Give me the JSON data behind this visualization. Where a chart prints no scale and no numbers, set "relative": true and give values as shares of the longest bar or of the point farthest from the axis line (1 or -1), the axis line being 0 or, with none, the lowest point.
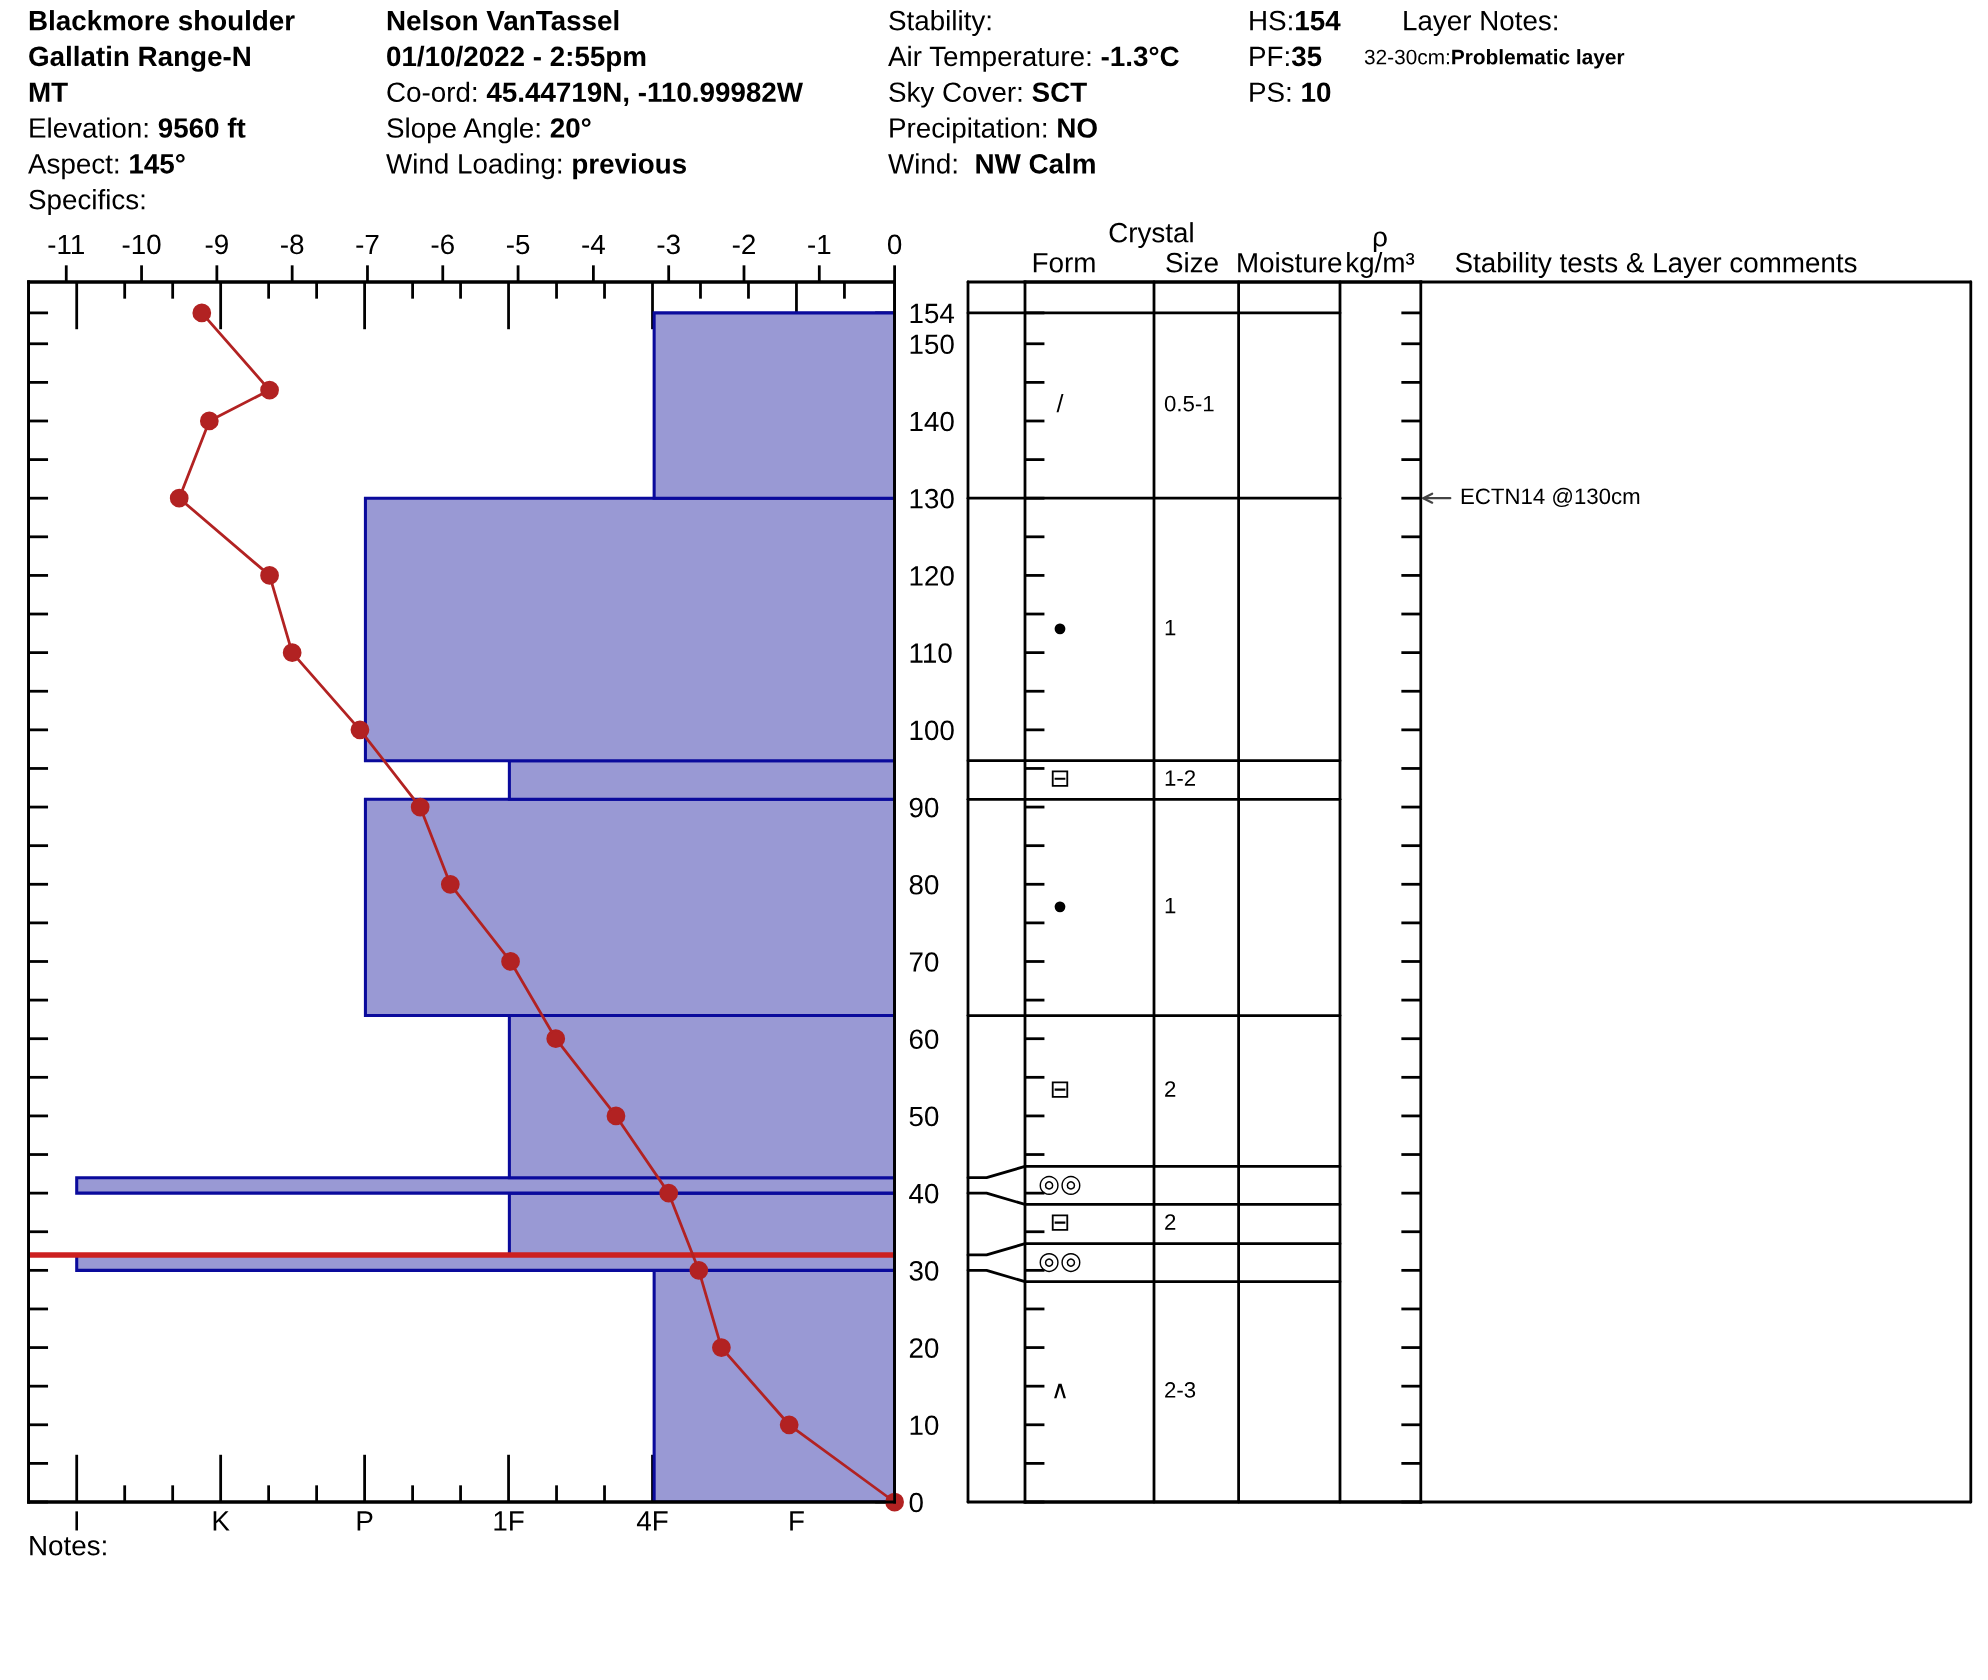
{
  "chart_data": [
    {
      "type": "other",
      "annotations": [
        "Blackmore shoulder",
        "Gallatin Range-N",
        "MT",
        "Elevation: 9560 ft",
        "Aspect: 145°",
        "Specifics:",
        "Nelson VanTassel",
        "01/10/2022 - 2:55pm",
        "Co-ord: 45.44719N, -110.99982W",
        "Slope Angle: 20°",
        "Wind Loading: previous",
        "Stability:",
        "Air Temperature: -1.3°C",
        "Sky Cover: SCT",
        "Precipitation: NO",
        "Wind:  NW Calm",
        "HS:154",
        "PF:35",
        "PS: 10",
        "Layer Notes:",
        "32-30cm:Problematic layer",
        "Notes:"
      ]
    },
    {
      "type": "bar",
      "orientation": "horizontal",
      "relative": true,
      "ylim": [
        0,
        158
      ],
      "yticks": [
        0,
        {
          "value": 5,
          "label": null
        },
        10,
        {
          "value": 15,
          "label": null
        },
        20,
        {
          "value": 25,
          "label": null
        },
        30,
        {
          "value": 35,
          "label": null
        },
        40,
        {
          "value": 45,
          "label": null
        },
        50,
        {
          "value": 55,
          "label": null
        },
        60,
        {
          "value": 65,
          "label": null
        },
        70,
        {
          "value": 75,
          "label": null
        },
        80,
        {
          "value": 85,
          "label": null
        },
        90,
        {
          "value": 95,
          "label": null
        },
        100,
        {
          "value": 105,
          "label": null
        },
        110,
        {
          "value": 115,
          "label": null
        },
        120,
        {
          "value": 125,
          "label": null
        },
        130,
        {
          "value": 135,
          "label": null
        },
        140,
        {
          "value": 145,
          "label": null
        },
        150,
        154
      ],
      "tick_labels": "y",
      "x": [
        15,
        31,
        36,
        41,
        52.5,
        77,
        93.5,
        113,
        142
      ],
      "values": [
        0.294,
        1,
        0.471,
        1,
        0.471,
        0.647,
        0.471,
        0.647,
        0.294
      ],
      "color": "#9999d4",
      "ref_lines": [
        {
          "axis": "y",
          "value": 32,
          "color": "#cc2020"
        }
      ],
      "annotations": [
        "I",
        "K",
        "P",
        "1F",
        "4F",
        "F"
      ]
    },
    {
      "type": "line",
      "orientation": "horizontal",
      "xlim": [
        -11.5,
        0
      ],
      "xticks": [
        -11,
        -10,
        -9,
        -8,
        -7,
        -6,
        -5,
        -4,
        -3,
        -2,
        -1,
        0
      ],
      "ylim": [
        0,
        158
      ],
      "tick_labels": "x",
      "x": [
        0,
        10,
        20,
        30,
        40,
        50,
        60,
        70,
        80,
        90,
        100,
        110,
        120,
        130,
        140,
        144,
        154
      ],
      "values": [
        0,
        -1.4,
        -2.3,
        -2.6,
        -3.0,
        -3.7,
        -4.5,
        -5.1,
        -5.9,
        -6.3,
        -7.1,
        -8.0,
        -8.3,
        -9.5,
        -9.1,
        -8.3,
        -9.2
      ],
      "color": "#b22222",
      "marker": "circle"
    },
    {
      "type": "other",
      "categories": [
        null,
        "Form",
        "Size",
        "Moisture",
        "ρ\nkg/m³",
        "Stability tests & Layer comments"
      ],
      "annotations": [
        "Crystal",
        {
          "text": "/",
          "x": "Form"
        },
        {
          "text": "0.5-1",
          "x": "Size"
        },
        {
          "text": "ECTN14 @130cm",
          "x": "Stability tests & Layer comments"
        },
        {
          "text": "●",
          "x": "Form"
        },
        {
          "text": "1",
          "x": "Size"
        },
        {
          "text": "⊟",
          "x": "Form"
        },
        {
          "text": "1-2",
          "x": "Size"
        },
        {
          "text": "●",
          "x": "Form"
        },
        {
          "text": "1",
          "x": "Size"
        },
        {
          "text": "⊟",
          "x": "Form"
        },
        {
          "text": "2",
          "x": "Size"
        },
        {
          "text": "◎◎",
          "x": "Form"
        },
        {
          "text": "⊟",
          "x": "Form"
        },
        {
          "text": "2",
          "x": "Size"
        },
        {
          "text": "◎◎",
          "x": "Form"
        },
        {
          "text": "∧",
          "x": "Form"
        },
        {
          "text": "2-3",
          "x": "Size"
        }
      ]
    }
  ]
}
